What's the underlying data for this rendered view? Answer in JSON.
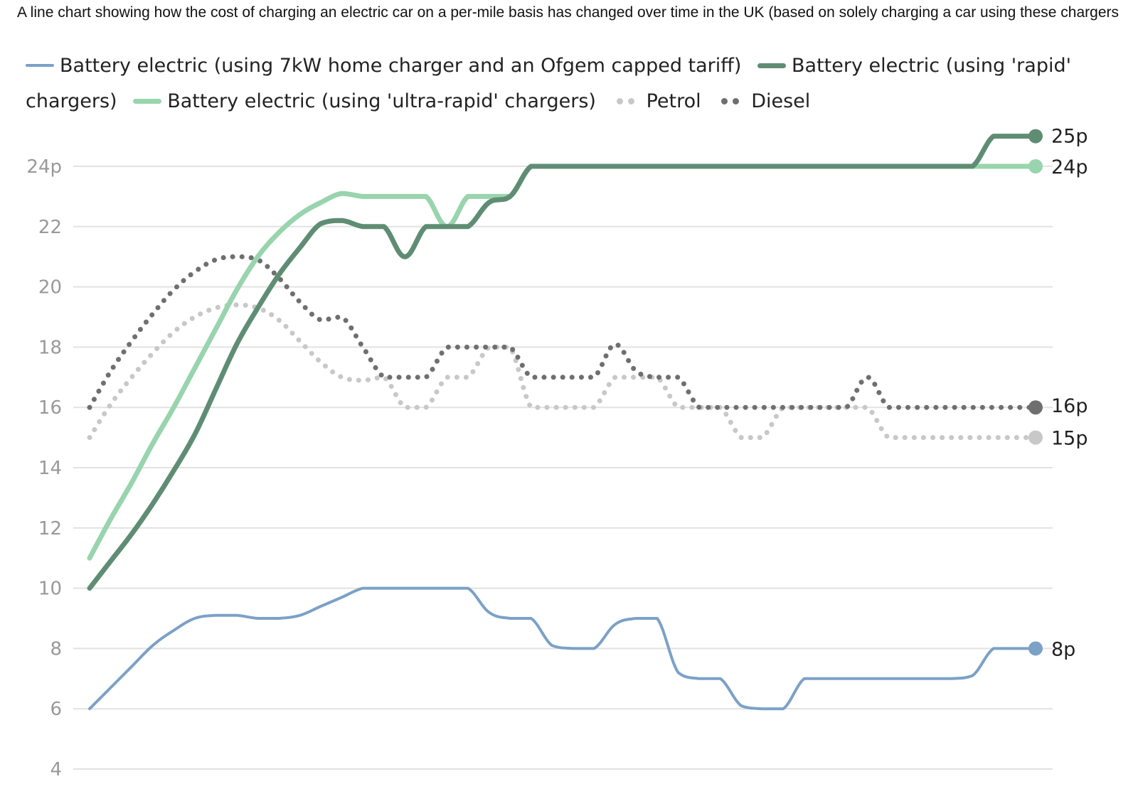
{
  "caption": "A line chart showing how the cost of charging an electric car on a per-mile basis has changed over time in the UK (based on solely charging a car using these chargers",
  "chart_data": {
    "type": "line",
    "title": "",
    "xlabel": "",
    "ylabel": "",
    "ylim": [
      4,
      25
    ],
    "yticks": [
      4,
      6,
      8,
      10,
      12,
      14,
      16,
      18,
      20,
      22,
      24
    ],
    "ytick_labels": [
      "4",
      "6",
      "8",
      "10",
      "12",
      "14",
      "16",
      "18",
      "20",
      "22",
      "24p"
    ],
    "grid": true,
    "legend": "top",
    "x": [
      0,
      1,
      2,
      3,
      4,
      5,
      6,
      7,
      8,
      9,
      10,
      11,
      12,
      13,
      14,
      15,
      16,
      17,
      18,
      19,
      20,
      21,
      22,
      23,
      24,
      25,
      26,
      27,
      28,
      29,
      30,
      31,
      32,
      33,
      34,
      35,
      36,
      37,
      38,
      39,
      40,
      41,
      42,
      43,
      44,
      45
    ],
    "series": [
      {
        "name": "Battery electric (using 7kW home charger and an Ofgem capped tariff)",
        "style": "line",
        "color": "#7ba1c7",
        "width": 4,
        "end_label": "8p",
        "values": [
          6,
          6.7,
          7.4,
          8.1,
          8.6,
          9.0,
          9.1,
          9.1,
          9.0,
          9.0,
          9.1,
          9.4,
          9.7,
          10.0,
          10.0,
          10.0,
          10.0,
          10.0,
          10.0,
          9.2,
          9.0,
          9.0,
          8.1,
          8.0,
          8.0,
          8.8,
          9.0,
          9.0,
          7.2,
          7.0,
          7.0,
          6.1,
          6.0,
          6.0,
          7.0,
          7.0,
          7.0,
          7.0,
          7.0,
          7.0,
          7.0,
          7.0,
          7.1,
          8.0,
          8.0,
          8.0
        ]
      },
      {
        "name": "Battery electric (using 'rapid' chargers)",
        "style": "line",
        "color": "#5f8d74",
        "width": 7,
        "end_label": "25p",
        "values": [
          10,
          10.9,
          11.8,
          12.8,
          13.9,
          15.1,
          16.6,
          18.1,
          19.3,
          20.4,
          21.3,
          22.1,
          22.2,
          22.0,
          22.0,
          21.0,
          22.0,
          22.0,
          22.0,
          22.8,
          23.0,
          24.0,
          24.0,
          24.0,
          24.0,
          24.0,
          24.0,
          24.0,
          24.0,
          24.0,
          24.0,
          24.0,
          24.0,
          24.0,
          24.0,
          24.0,
          24.0,
          24.0,
          24.0,
          24.0,
          24.0,
          24.0,
          24.0,
          25.0,
          25.0,
          25.0
        ]
      },
      {
        "name": "Battery electric (using 'ultra-rapid' chargers)",
        "style": "line",
        "color": "#98d4ad",
        "width": 7,
        "end_label": "24p",
        "values": [
          11,
          12.3,
          13.5,
          14.8,
          16.0,
          17.3,
          18.6,
          19.9,
          21.0,
          21.8,
          22.4,
          22.8,
          23.1,
          23.0,
          23.0,
          23.0,
          23.0,
          22.0,
          23.0,
          23.0,
          23.0,
          24.0,
          24.0,
          24.0,
          24.0,
          24.0,
          24.0,
          24.0,
          24.0,
          24.0,
          24.0,
          24.0,
          24.0,
          24.0,
          24.0,
          24.0,
          24.0,
          24.0,
          24.0,
          24.0,
          24.0,
          24.0,
          24.0,
          24.0,
          24.0,
          24.0
        ]
      },
      {
        "name": "Petrol",
        "style": "dotted",
        "color": "#c8c8c8",
        "width": 7,
        "end_label": "15p",
        "values": [
          15,
          16.1,
          17.0,
          17.8,
          18.5,
          19.0,
          19.3,
          19.4,
          19.3,
          18.9,
          18.2,
          17.5,
          17.0,
          16.9,
          17.0,
          16.0,
          16.0,
          17.0,
          17.0,
          18.0,
          18.0,
          16.0,
          16.0,
          16.0,
          16.0,
          17.0,
          17.0,
          17.0,
          16.0,
          16.0,
          16.0,
          15.0,
          15.0,
          16.0,
          16.0,
          16.0,
          16.0,
          16.0,
          15.0,
          15.0,
          15.0,
          15.0,
          15.0,
          15.0,
          15.0,
          15.0
        ]
      },
      {
        "name": "Diesel",
        "style": "dotted",
        "color": "#6f6f6f",
        "width": 7,
        "end_label": "16p",
        "values": [
          16,
          17.2,
          18.2,
          19.1,
          19.9,
          20.5,
          20.9,
          21.0,
          20.9,
          20.3,
          19.5,
          18.9,
          19.0,
          18.0,
          17.0,
          17.0,
          17.0,
          18.0,
          18.0,
          18.0,
          18.0,
          17.0,
          17.0,
          17.0,
          17.0,
          18.1,
          17.2,
          17.0,
          17.0,
          16.0,
          16.0,
          16.0,
          16.0,
          16.0,
          16.0,
          16.0,
          16.0,
          17.0,
          16.0,
          16.0,
          16.0,
          16.0,
          16.0,
          16.0,
          16.0,
          16.0
        ]
      }
    ]
  }
}
